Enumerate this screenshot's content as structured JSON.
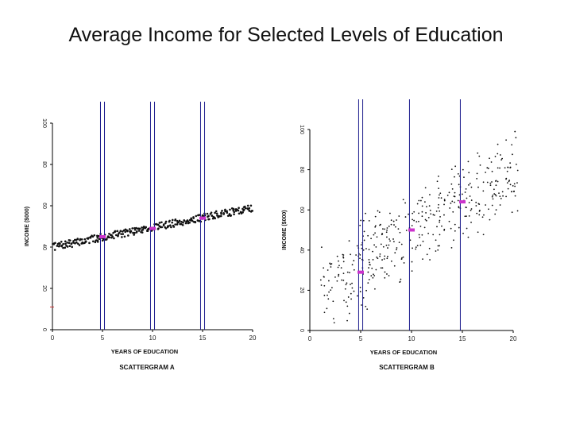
{
  "title": "Average Income for Selected Levels of Education",
  "colors": {
    "guide": "#1a1a8c",
    "mean": "#cc33cc",
    "point": "#111111",
    "axis": "#000000"
  },
  "chart_data": [
    {
      "type": "scatter",
      "title": "SCATTERGRAM A",
      "xlabel": "YEARS OF EDUCATION",
      "ylabel": "INCOME ($000)",
      "xlim": [
        0,
        20
      ],
      "ylim": [
        0,
        100
      ],
      "xticks": [
        "0",
        "5",
        "10",
        "15",
        "20"
      ],
      "yticks": [
        "0",
        "20",
        "40",
        "60",
        "80",
        "100"
      ],
      "band": {
        "intercept": 40,
        "slope": 0.95,
        "spread": 1.8
      },
      "guide_lines": [
        4.8,
        5.2,
        9.8,
        10.2,
        14.8,
        15.2
      ],
      "means": [
        {
          "x": 5,
          "y": 45
        },
        {
          "x": 10,
          "y": 49
        },
        {
          "x": 15,
          "y": 54
        }
      ],
      "extra_mark": {
        "x": 0,
        "y": 11
      }
    },
    {
      "type": "scatter",
      "title": "SCATTERGRAM B",
      "xlabel": "YEARS OF EDUCATION",
      "ylabel": "INCOME ($000)",
      "xlim": [
        0,
        20
      ],
      "ylim": [
        0,
        100
      ],
      "xticks": [
        "0",
        "5",
        "10",
        "15",
        "20"
      ],
      "yticks": [
        "0",
        "20",
        "40",
        "60",
        "80",
        "100"
      ],
      "band": {
        "intercept": 18,
        "slope": 3.1,
        "spread": 14
      },
      "guide_lines": [
        4.8,
        5.2,
        9.8,
        14.8
      ],
      "means": [
        {
          "x": 5,
          "y": 29
        },
        {
          "x": 10,
          "y": 50
        },
        {
          "x": 15,
          "y": 64
        }
      ]
    }
  ]
}
